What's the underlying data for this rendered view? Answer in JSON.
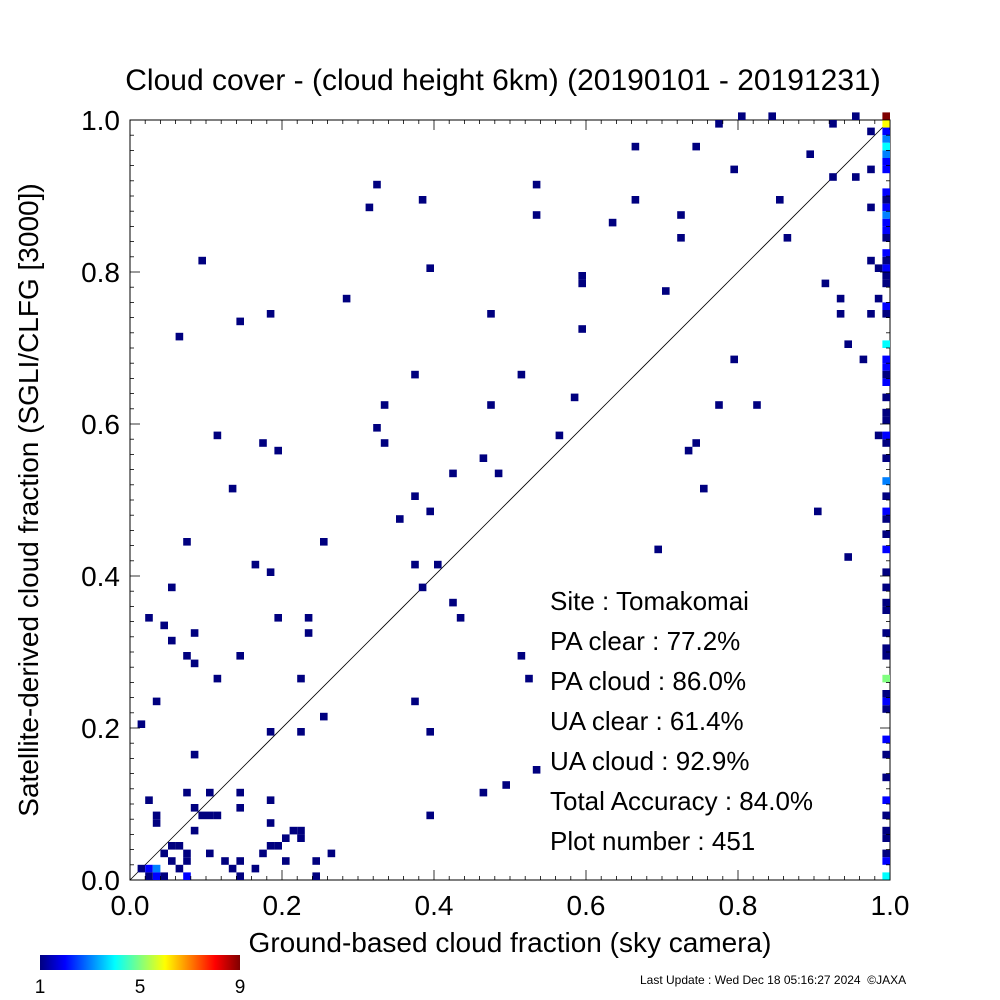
{
  "chart_data": {
    "type": "heatmap",
    "title": "Cloud cover - (cloud height 6km)  (20190101 - 20191231)",
    "xlabel": "Ground-based cloud fraction (sky camera)",
    "ylabel": "Satellite-derived cloud fraction (SGLI/CLFG [3000])",
    "xlim": [
      0.0,
      1.0
    ],
    "ylim": [
      0.0,
      1.0
    ],
    "x_ticks": [
      "0.0",
      "0.2",
      "0.4",
      "0.6",
      "0.8",
      "1.0"
    ],
    "y_ticks": [
      "0.0",
      "0.2",
      "0.4",
      "0.6",
      "0.8",
      "1.0"
    ],
    "diagonal_line": true,
    "grid": false,
    "colorbar": {
      "min": 1,
      "max": 9,
      "tick_labels": [
        "1",
        "5",
        "9"
      ]
    },
    "stats": [
      {
        "label": "Site : Tomakomai"
      },
      {
        "label": "PA clear :  77.2%"
      },
      {
        "label": "PA cloud :  86.0%"
      },
      {
        "label": "UA clear :  61.4%"
      },
      {
        "label": "UA cloud :  92.9%"
      },
      {
        "label": "Total Accuracy :  84.0%"
      },
      {
        "label": "Plot number :       451"
      }
    ],
    "points": [
      [
        0.01,
        0.01,
        1
      ],
      [
        0.02,
        0.01,
        2
      ],
      [
        0.03,
        0.01,
        3
      ],
      [
        0.03,
        0.0,
        2
      ],
      [
        0.02,
        0.0,
        1
      ],
      [
        0.04,
        0.0,
        1
      ],
      [
        0.04,
        0.03,
        1
      ],
      [
        0.05,
        0.02,
        1
      ],
      [
        0.06,
        0.04,
        1
      ],
      [
        0.06,
        0.01,
        1
      ],
      [
        0.07,
        0.02,
        1
      ],
      [
        0.07,
        0.0,
        2
      ],
      [
        0.05,
        0.04,
        1
      ],
      [
        0.07,
        0.03,
        1
      ],
      [
        0.08,
        0.06,
        1
      ],
      [
        0.09,
        0.08,
        1
      ],
      [
        0.1,
        0.08,
        1
      ],
      [
        0.1,
        0.03,
        1
      ],
      [
        0.12,
        0.02,
        1
      ],
      [
        0.13,
        0.01,
        1
      ],
      [
        0.14,
        0.0,
        1
      ],
      [
        0.14,
        0.02,
        1
      ],
      [
        0.16,
        0.01,
        1
      ],
      [
        0.17,
        0.03,
        1
      ],
      [
        0.18,
        0.04,
        1
      ],
      [
        0.19,
        0.04,
        1
      ],
      [
        0.2,
        0.02,
        1
      ],
      [
        0.2,
        0.05,
        1
      ],
      [
        0.21,
        0.06,
        1
      ],
      [
        0.22,
        0.06,
        1
      ],
      [
        0.22,
        0.05,
        1
      ],
      [
        0.24,
        0.0,
        1
      ],
      [
        0.24,
        0.02,
        1
      ],
      [
        0.26,
        0.03,
        1
      ],
      [
        0.18,
        0.07,
        1
      ],
      [
        0.18,
        0.1,
        1
      ],
      [
        0.14,
        0.09,
        1
      ],
      [
        0.14,
        0.11,
        1
      ],
      [
        0.11,
        0.08,
        1
      ],
      [
        0.1,
        0.11,
        1
      ],
      [
        0.07,
        0.11,
        1
      ],
      [
        0.08,
        0.09,
        1
      ],
      [
        0.03,
        0.08,
        1
      ],
      [
        0.03,
        0.07,
        1
      ],
      [
        0.02,
        0.1,
        1
      ],
      [
        0.08,
        0.16,
        1
      ],
      [
        0.01,
        0.2,
        1
      ],
      [
        0.03,
        0.23,
        1
      ],
      [
        0.07,
        0.29,
        1
      ],
      [
        0.08,
        0.28,
        1
      ],
      [
        0.11,
        0.26,
        1
      ],
      [
        0.14,
        0.29,
        1
      ],
      [
        0.04,
        0.33,
        1
      ],
      [
        0.05,
        0.31,
        1
      ],
      [
        0.08,
        0.32,
        1
      ],
      [
        0.02,
        0.34,
        1
      ],
      [
        0.05,
        0.38,
        1
      ],
      [
        0.19,
        0.34,
        1
      ],
      [
        0.23,
        0.34,
        1
      ],
      [
        0.23,
        0.32,
        1
      ],
      [
        0.22,
        0.26,
        1
      ],
      [
        0.18,
        0.19,
        1
      ],
      [
        0.22,
        0.19,
        1
      ],
      [
        0.25,
        0.21,
        1
      ],
      [
        0.18,
        0.4,
        1
      ],
      [
        0.16,
        0.41,
        1
      ],
      [
        0.07,
        0.44,
        1
      ],
      [
        0.25,
        0.44,
        1
      ],
      [
        0.13,
        0.51,
        1
      ],
      [
        0.11,
        0.58,
        1
      ],
      [
        0.17,
        0.57,
        1
      ],
      [
        0.19,
        0.56,
        1
      ],
      [
        0.06,
        0.71,
        1
      ],
      [
        0.14,
        0.73,
        1
      ],
      [
        0.18,
        0.74,
        1
      ],
      [
        0.09,
        0.81,
        1
      ],
      [
        0.28,
        0.76,
        1
      ],
      [
        0.31,
        0.88,
        1
      ],
      [
        0.32,
        0.91,
        1
      ],
      [
        0.38,
        0.89,
        1
      ],
      [
        0.39,
        0.8,
        1
      ],
      [
        0.32,
        0.59,
        1
      ],
      [
        0.33,
        0.57,
        1
      ],
      [
        0.33,
        0.62,
        1
      ],
      [
        0.37,
        0.66,
        1
      ],
      [
        0.35,
        0.47,
        1
      ],
      [
        0.37,
        0.5,
        1
      ],
      [
        0.39,
        0.48,
        1
      ],
      [
        0.37,
        0.41,
        1
      ],
      [
        0.38,
        0.38,
        1
      ],
      [
        0.4,
        0.41,
        1
      ],
      [
        0.42,
        0.53,
        1
      ],
      [
        0.42,
        0.36,
        1
      ],
      [
        0.43,
        0.34,
        1
      ],
      [
        0.37,
        0.23,
        1
      ],
      [
        0.39,
        0.19,
        1
      ],
      [
        0.39,
        0.08,
        1
      ],
      [
        0.46,
        0.55,
        1
      ],
      [
        0.48,
        0.53,
        1
      ],
      [
        0.47,
        0.62,
        1
      ],
      [
        0.47,
        0.74,
        1
      ],
      [
        0.51,
        0.66,
        1
      ],
      [
        0.53,
        0.91,
        1
      ],
      [
        0.53,
        0.87,
        1
      ],
      [
        0.46,
        0.11,
        1
      ],
      [
        0.49,
        0.12,
        1
      ],
      [
        0.51,
        0.29,
        1
      ],
      [
        0.52,
        0.26,
        1
      ],
      [
        0.53,
        0.14,
        1
      ],
      [
        0.56,
        0.58,
        1
      ],
      [
        0.58,
        0.63,
        1
      ],
      [
        0.59,
        0.72,
        1
      ],
      [
        0.59,
        0.78,
        1
      ],
      [
        0.59,
        0.79,
        1
      ],
      [
        0.63,
        0.86,
        1
      ],
      [
        0.66,
        0.89,
        1
      ],
      [
        0.66,
        0.96,
        1
      ],
      [
        0.7,
        0.77,
        1
      ],
      [
        0.69,
        0.43,
        1
      ],
      [
        0.72,
        0.87,
        1
      ],
      [
        0.72,
        0.84,
        1
      ],
      [
        0.73,
        0.56,
        1
      ],
      [
        0.74,
        0.57,
        1
      ],
      [
        0.74,
        0.96,
        1
      ],
      [
        0.75,
        0.51,
        1
      ],
      [
        0.77,
        0.62,
        1
      ],
      [
        0.77,
        0.99,
        1
      ],
      [
        0.79,
        0.93,
        1
      ],
      [
        0.79,
        0.68,
        1
      ],
      [
        0.8,
        1.0,
        1
      ],
      [
        0.82,
        0.62,
        1
      ],
      [
        0.84,
        1.0,
        1
      ],
      [
        0.85,
        0.89,
        1
      ],
      [
        0.86,
        0.84,
        1
      ],
      [
        0.89,
        0.95,
        1
      ],
      [
        0.9,
        0.48,
        1
      ],
      [
        0.91,
        0.78,
        1
      ],
      [
        0.92,
        0.99,
        1
      ],
      [
        0.92,
        0.92,
        1
      ],
      [
        0.93,
        0.76,
        1
      ],
      [
        0.93,
        0.74,
        1
      ],
      [
        0.94,
        0.7,
        1
      ],
      [
        0.94,
        0.42,
        1
      ],
      [
        0.95,
        0.92,
        1
      ],
      [
        0.95,
        1.0,
        1
      ],
      [
        0.96,
        0.68,
        1
      ],
      [
        0.97,
        0.98,
        1
      ],
      [
        0.97,
        0.93,
        1
      ],
      [
        0.97,
        0.88,
        1
      ],
      [
        0.97,
        0.81,
        1
      ],
      [
        0.98,
        0.8,
        1
      ],
      [
        0.98,
        0.76,
        1
      ],
      [
        0.97,
        0.74,
        1
      ],
      [
        0.98,
        0.58,
        1
      ],
      [
        0.99,
        1.0,
        9
      ],
      [
        0.99,
        0.99,
        6
      ],
      [
        0.99,
        0.98,
        2
      ],
      [
        0.99,
        0.97,
        3
      ],
      [
        0.99,
        0.96,
        4
      ],
      [
        0.99,
        0.95,
        3
      ],
      [
        0.99,
        0.94,
        2
      ],
      [
        0.99,
        0.93,
        2
      ],
      [
        0.99,
        0.9,
        2
      ],
      [
        0.99,
        0.89,
        1
      ],
      [
        0.99,
        0.88,
        2
      ],
      [
        0.99,
        0.87,
        3
      ],
      [
        0.99,
        0.86,
        2
      ],
      [
        0.99,
        0.85,
        2
      ],
      [
        0.99,
        0.84,
        1
      ],
      [
        0.99,
        0.82,
        2
      ],
      [
        0.99,
        0.81,
        1
      ],
      [
        0.99,
        0.8,
        2
      ],
      [
        0.99,
        0.79,
        1
      ],
      [
        0.99,
        0.78,
        1
      ],
      [
        0.99,
        0.75,
        2
      ],
      [
        0.99,
        0.74,
        1
      ],
      [
        0.99,
        0.7,
        4
      ],
      [
        0.99,
        0.68,
        2
      ],
      [
        0.99,
        0.67,
        2
      ],
      [
        0.99,
        0.66,
        1
      ],
      [
        0.99,
        0.65,
        2
      ],
      [
        0.99,
        0.63,
        1
      ],
      [
        0.99,
        0.61,
        1
      ],
      [
        0.99,
        0.6,
        1
      ],
      [
        0.99,
        0.58,
        2
      ],
      [
        0.99,
        0.57,
        1
      ],
      [
        0.99,
        0.55,
        1
      ],
      [
        0.99,
        0.52,
        3
      ],
      [
        0.99,
        0.5,
        1
      ],
      [
        0.99,
        0.48,
        2
      ],
      [
        0.99,
        0.47,
        1
      ],
      [
        0.99,
        0.45,
        1
      ],
      [
        0.99,
        0.43,
        2
      ],
      [
        0.99,
        0.4,
        1
      ],
      [
        0.99,
        0.38,
        1
      ],
      [
        0.99,
        0.36,
        1
      ],
      [
        0.99,
        0.35,
        1
      ],
      [
        0.99,
        0.32,
        1
      ],
      [
        0.99,
        0.3,
        1
      ],
      [
        0.99,
        0.29,
        1
      ],
      [
        0.99,
        0.26,
        5
      ],
      [
        0.99,
        0.24,
        1
      ],
      [
        0.99,
        0.23,
        2
      ],
      [
        0.99,
        0.22,
        1
      ],
      [
        0.99,
        0.18,
        2
      ],
      [
        0.99,
        0.16,
        1
      ],
      [
        0.99,
        0.13,
        1
      ],
      [
        0.99,
        0.1,
        2
      ],
      [
        0.99,
        0.08,
        1
      ],
      [
        0.99,
        0.06,
        1
      ],
      [
        0.99,
        0.05,
        1
      ],
      [
        0.99,
        0.03,
        1
      ],
      [
        0.99,
        0.02,
        2
      ],
      [
        0.99,
        0.0,
        4
      ]
    ]
  },
  "footer": {
    "text": "Last Update : Wed Dec 18 05:16:27 2024  ©JAXA"
  }
}
